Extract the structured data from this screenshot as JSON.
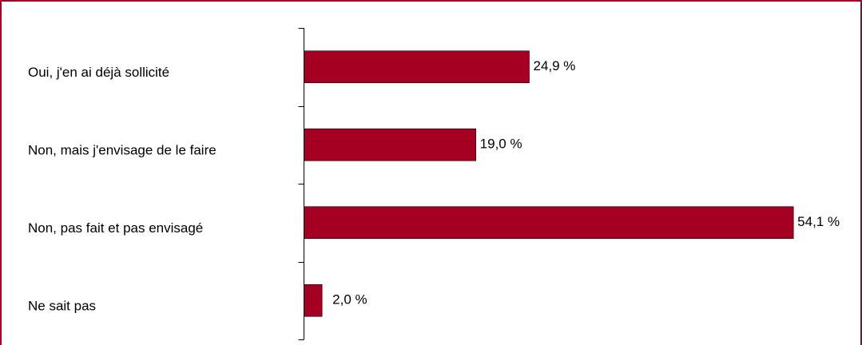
{
  "chart_data": {
    "type": "bar",
    "orientation": "horizontal",
    "categories": [
      "Oui, j'en ai déjà sollicité",
      "Non, mais j'envisage de le faire",
      "Non, pas fait et pas envisagé",
      "Ne sait pas"
    ],
    "values": [
      24.9,
      19.0,
      54.1,
      2.0
    ],
    "value_labels": [
      "24,9 %",
      "19,0 %",
      "54,1 %",
      "2,0 %"
    ],
    "color": "#a50021",
    "xlim": [
      0,
      60
    ]
  }
}
